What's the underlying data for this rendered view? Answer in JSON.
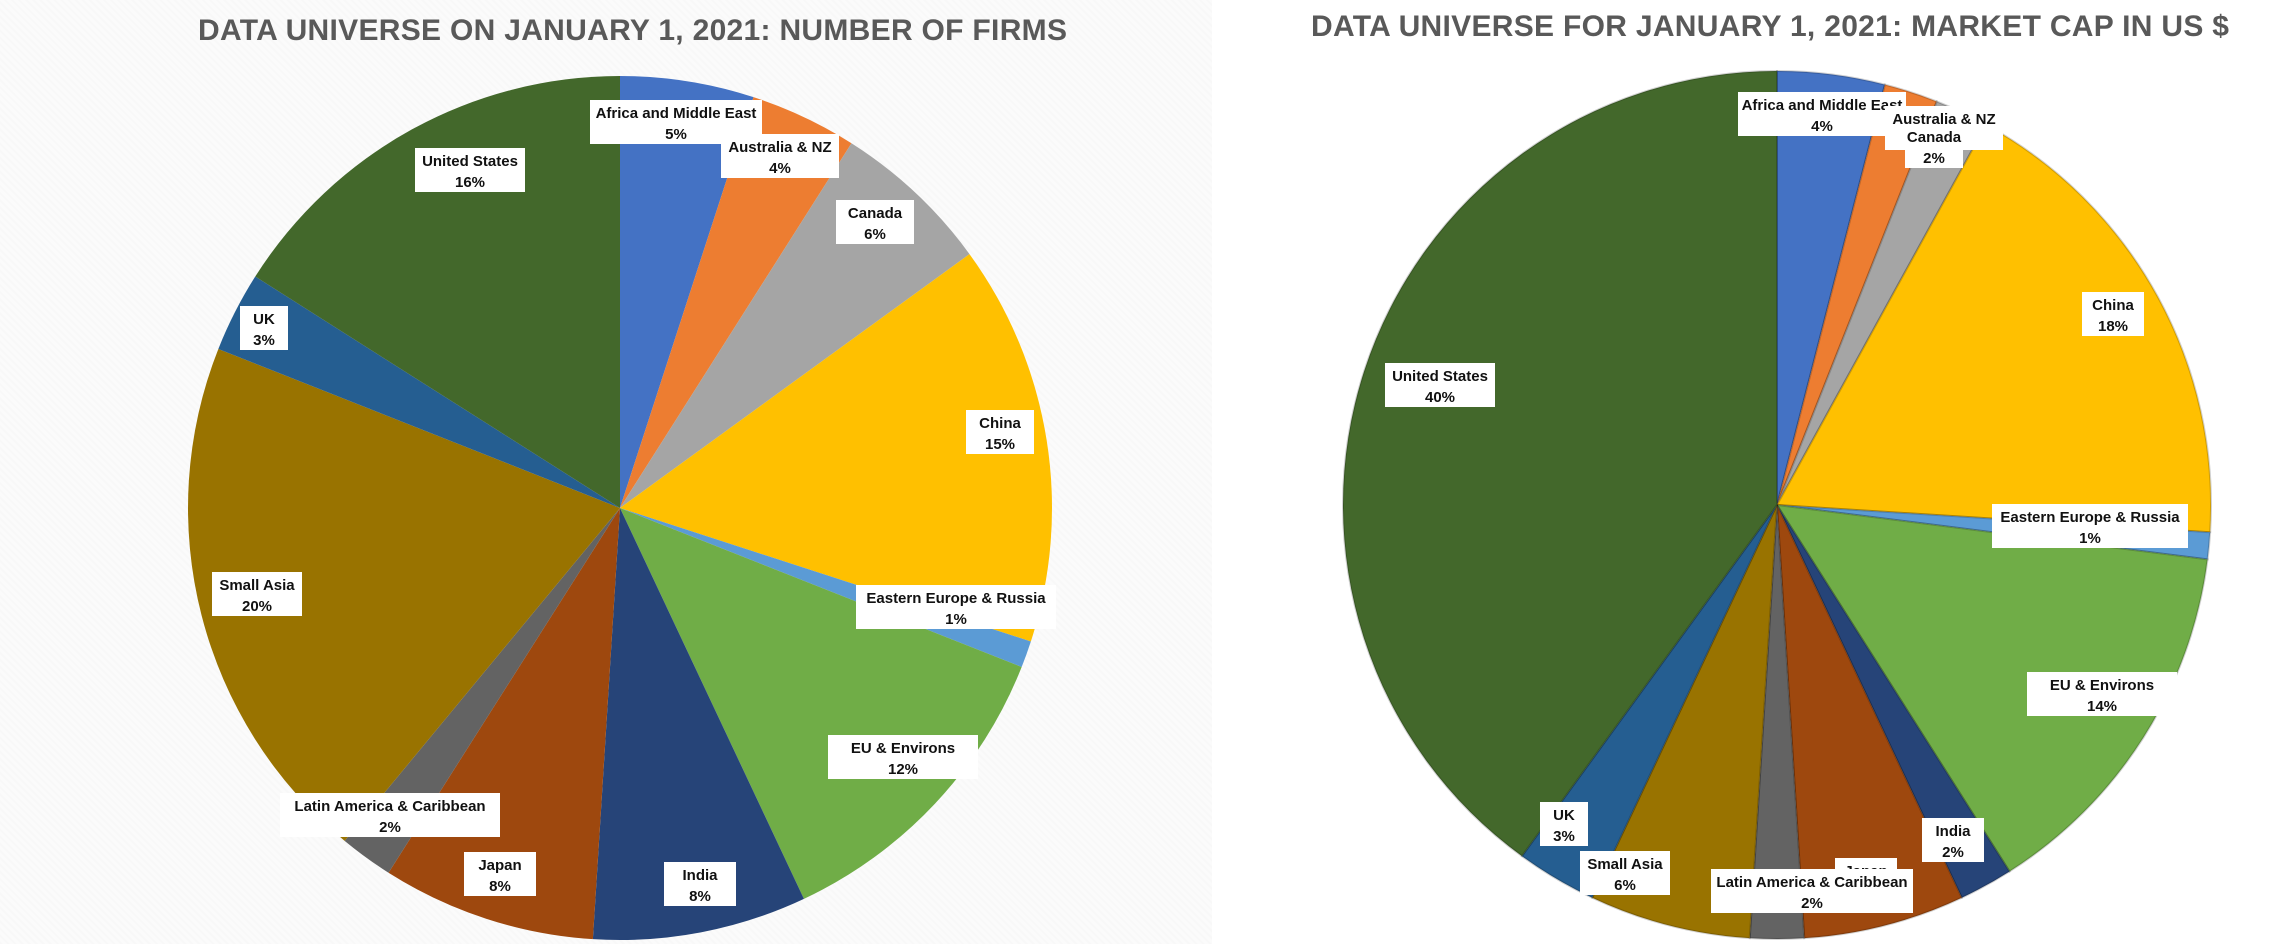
{
  "chart_data": [
    {
      "type": "pie",
      "title": "DATA UNIVERSE ON JANUARY 1, 2021: NUMBER OF FIRMS",
      "slices": [
        {
          "name": "Africa and Middle East",
          "value": 5,
          "label": "5%",
          "color": "#4472C4"
        },
        {
          "name": "Australia & NZ",
          "value": 4,
          "label": "4%",
          "color": "#ED7D31"
        },
        {
          "name": "Canada",
          "value": 6,
          "label": "6%",
          "color": "#A5A5A5"
        },
        {
          "name": "China",
          "value": 15,
          "label": "15%",
          "color": "#FFC000"
        },
        {
          "name": "Eastern Europe & Russia",
          "value": 1,
          "label": "1%",
          "color": "#5B9BD5"
        },
        {
          "name": "EU & Environs",
          "value": 12,
          "label": "12%",
          "color": "#70AD47"
        },
        {
          "name": "India",
          "value": 8,
          "label": "8%",
          "color": "#264478"
        },
        {
          "name": "Japan",
          "value": 8,
          "label": "8%",
          "color": "#9E480E"
        },
        {
          "name": "Latin America & Caribbean",
          "value": 2,
          "label": "2%",
          "color": "#636363"
        },
        {
          "name": "Small Asia",
          "value": 20,
          "label": "20%",
          "color": "#997300"
        },
        {
          "name": "UK",
          "value": 3,
          "label": "3%",
          "color": "#255E91"
        },
        {
          "name": "United States",
          "value": 16,
          "label": "16%",
          "color": "#43682B"
        }
      ]
    },
    {
      "type": "pie",
      "title": "DATA UNIVERSE FOR JANUARY 1, 2021: MARKET CAP IN US $",
      "slices": [
        {
          "name": "Africa and Middle East",
          "value": 4,
          "label": "4%",
          "color": "#4472C4"
        },
        {
          "name": "Australia & NZ",
          "value": 2,
          "label": "2%",
          "color": "#ED7D31"
        },
        {
          "name": "Canada",
          "value": 2,
          "label": "2%",
          "color": "#A5A5A5"
        },
        {
          "name": "China",
          "value": 18,
          "label": "18%",
          "color": "#FFC000"
        },
        {
          "name": "Eastern Europe & Russia",
          "value": 1,
          "label": "1%",
          "color": "#5B9BD5"
        },
        {
          "name": "EU & Environs",
          "value": 14,
          "label": "14%",
          "color": "#70AD47"
        },
        {
          "name": "India",
          "value": 2,
          "label": "2%",
          "color": "#264478"
        },
        {
          "name": "Japan",
          "value": 6,
          "label": "6%",
          "color": "#9E480E"
        },
        {
          "name": "Latin America & Caribbean",
          "value": 2,
          "label": "2%",
          "color": "#636363"
        },
        {
          "name": "Small Asia",
          "value": 6,
          "label": "6%",
          "color": "#997300"
        },
        {
          "name": "UK",
          "value": 3,
          "label": "3%",
          "color": "#255E91"
        },
        {
          "name": "United States",
          "value": 40,
          "label": "40%",
          "color": "#43682B"
        }
      ]
    }
  ]
}
